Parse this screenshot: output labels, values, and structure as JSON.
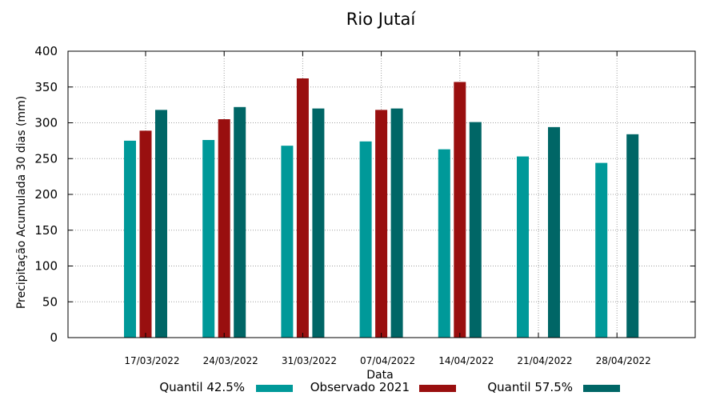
{
  "chart_data": {
    "type": "bar",
    "title": "Rio Jutaí",
    "xlabel": "Data",
    "ylabel": "Precipitação Acumulada 30 dias (mm)",
    "ylim": [
      0,
      400
    ],
    "yticks": [
      0,
      50,
      100,
      150,
      200,
      250,
      300,
      350,
      400
    ],
    "grid": true,
    "legend_position": "bottom",
    "categories": [
      "17/03/2022",
      "24/03/2022",
      "31/03/2022",
      "07/04/2022",
      "14/04/2022",
      "21/04/2022",
      "28/04/2022"
    ],
    "series": [
      {
        "name": "Quantil 42.5%",
        "color": "#009999",
        "values": [
          275,
          276,
          268,
          274,
          263,
          253,
          244
        ]
      },
      {
        "name": "Observado 2021",
        "color": "#990f0f",
        "values": [
          289,
          305,
          362,
          318,
          357,
          null,
          null
        ]
      },
      {
        "name": "Quantil 57.5%",
        "color": "#006666",
        "values": [
          318,
          322,
          320,
          320,
          301,
          294,
          284
        ]
      }
    ]
  }
}
